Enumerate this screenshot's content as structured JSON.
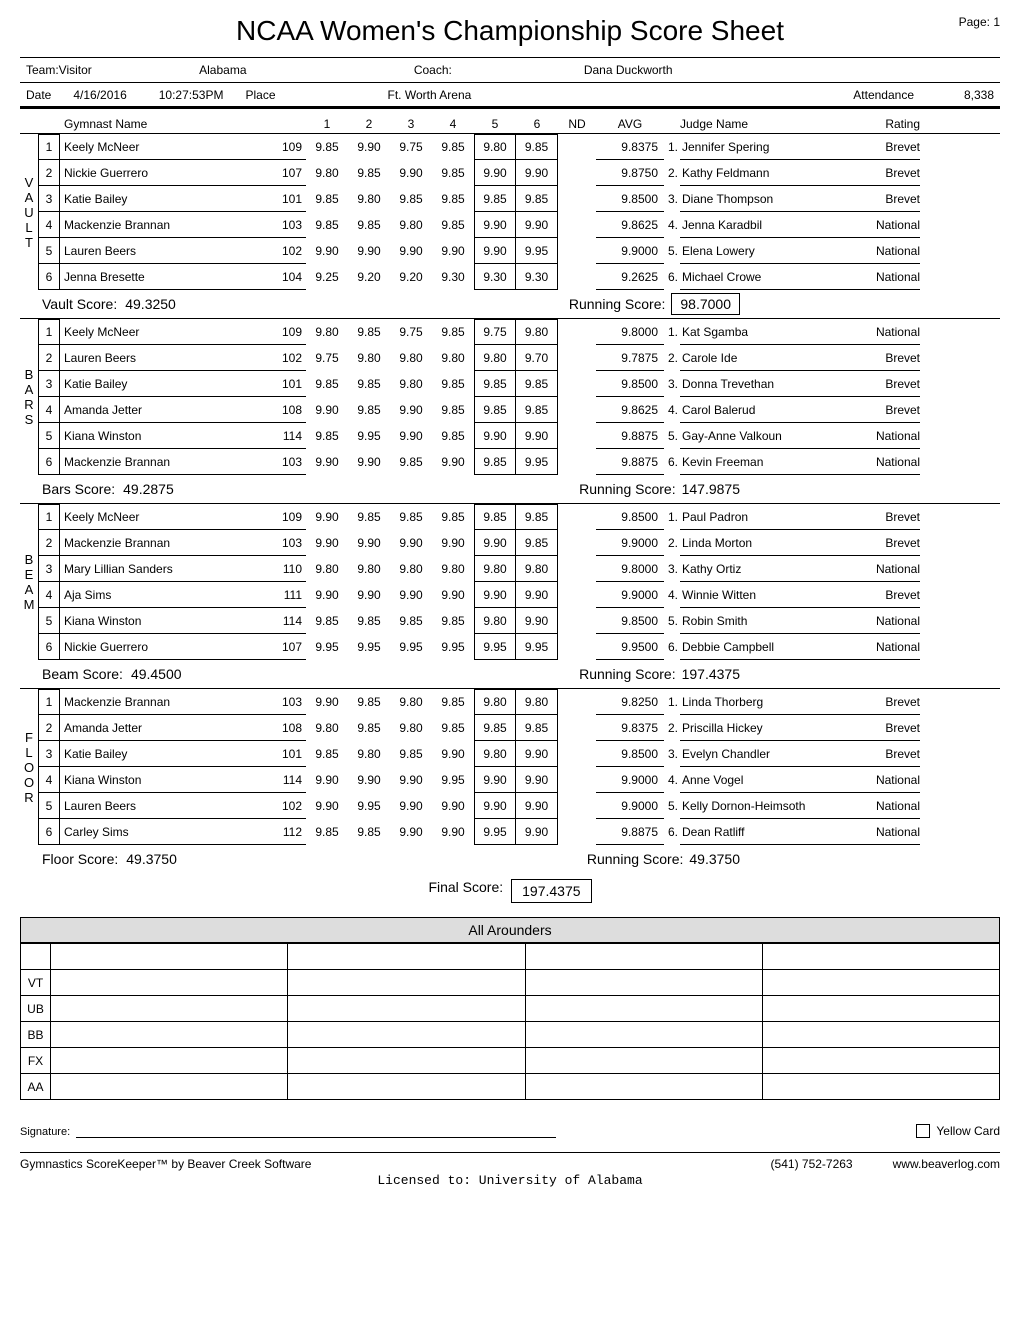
{
  "page_label": "Page:  1",
  "title": "NCAA Women's Championship Score Sheet",
  "team_label": "Team:Visitor",
  "team_name": "Alabama",
  "coach_label": "Coach:",
  "coach_name": "Dana Duckworth",
  "date_label": "Date",
  "date": "4/16/2016",
  "time": "10:27:53PM",
  "place_label": "Place",
  "venue": "Ft. Worth Arena",
  "attendance_label": "Attendance",
  "attendance": "8,338",
  "col_headers": {
    "gymnast": "Gymnast Name",
    "s1": "1",
    "s2": "2",
    "s3": "3",
    "s4": "4",
    "s5": "5",
    "s6": "6",
    "nd": "ND",
    "avg": "AVG",
    "judge": "Judge Name",
    "rating": "Rating"
  },
  "events": [
    {
      "code": "VAULT",
      "letters": [
        "V",
        "A",
        "U",
        "L",
        "T"
      ],
      "rows": [
        {
          "n": "1",
          "name": "Keely McNeer",
          "bib": "109",
          "s": [
            "9.85",
            "9.90",
            "9.75",
            "9.85",
            "9.80",
            "9.85"
          ],
          "avg": "9.8375",
          "jn": "1.",
          "jname": "Jennifer Spering",
          "rating": "Brevet"
        },
        {
          "n": "2",
          "name": "Nickie Guerrero",
          "bib": "107",
          "s": [
            "9.80",
            "9.85",
            "9.90",
            "9.85",
            "9.90",
            "9.90"
          ],
          "avg": "9.8750",
          "jn": "2.",
          "jname": "Kathy Feldmann",
          "rating": "Brevet"
        },
        {
          "n": "3",
          "name": "Katie Bailey",
          "bib": "101",
          "s": [
            "9.85",
            "9.80",
            "9.85",
            "9.85",
            "9.85",
            "9.85"
          ],
          "avg": "9.8500",
          "jn": "3.",
          "jname": "Diane Thompson",
          "rating": "Brevet"
        },
        {
          "n": "4",
          "name": "Mackenzie Brannan",
          "bib": "103",
          "s": [
            "9.85",
            "9.85",
            "9.80",
            "9.85",
            "9.90",
            "9.90"
          ],
          "avg": "9.8625",
          "jn": "4.",
          "jname": "Jenna Karadbil",
          "rating": "National"
        },
        {
          "n": "5",
          "name": "Lauren Beers",
          "bib": "102",
          "s": [
            "9.90",
            "9.90",
            "9.90",
            "9.90",
            "9.90",
            "9.95"
          ],
          "avg": "9.9000",
          "jn": "5.",
          "jname": "Elena Lowery",
          "rating": "National"
        },
        {
          "n": "6",
          "name": "Jenna Bresette",
          "bib": "104",
          "s": [
            "9.25",
            "9.20",
            "9.20",
            "9.30",
            "9.30",
            "9.30"
          ],
          "avg": "9.2625",
          "jn": "6.",
          "jname": "Michael Crowe",
          "rating": "National"
        }
      ],
      "score_label": "Vault Score:",
      "score": "49.3250",
      "running_label": "Running Score:",
      "running": "98.7000"
    },
    {
      "code": "BARS",
      "letters": [
        "B",
        "A",
        "R",
        "S"
      ],
      "rows": [
        {
          "n": "1",
          "name": "Keely McNeer",
          "bib": "109",
          "s": [
            "9.80",
            "9.85",
            "9.75",
            "9.85",
            "9.75",
            "9.80"
          ],
          "avg": "9.8000",
          "jn": "1.",
          "jname": "Kat Sgamba",
          "rating": "National"
        },
        {
          "n": "2",
          "name": "Lauren Beers",
          "bib": "102",
          "s": [
            "9.75",
            "9.80",
            "9.80",
            "9.80",
            "9.80",
            "9.70"
          ],
          "avg": "9.7875",
          "jn": "2.",
          "jname": "Carole Ide",
          "rating": "Brevet"
        },
        {
          "n": "3",
          "name": "Katie Bailey",
          "bib": "101",
          "s": [
            "9.85",
            "9.85",
            "9.80",
            "9.85",
            "9.85",
            "9.85"
          ],
          "avg": "9.8500",
          "jn": "3.",
          "jname": "Donna Trevethan",
          "rating": "Brevet"
        },
        {
          "n": "4",
          "name": "Amanda Jetter",
          "bib": "108",
          "s": [
            "9.90",
            "9.85",
            "9.90",
            "9.85",
            "9.85",
            "9.85"
          ],
          "avg": "9.8625",
          "jn": "4.",
          "jname": "Carol Balerud",
          "rating": "Brevet"
        },
        {
          "n": "5",
          "name": "Kiana Winston",
          "bib": "114",
          "s": [
            "9.85",
            "9.95",
            "9.90",
            "9.85",
            "9.90",
            "9.90"
          ],
          "avg": "9.8875",
          "jn": "5.",
          "jname": "Gay-Anne Valkoun",
          "rating": "National"
        },
        {
          "n": "6",
          "name": "Mackenzie Brannan",
          "bib": "103",
          "s": [
            "9.90",
            "9.90",
            "9.85",
            "9.90",
            "9.85",
            "9.95"
          ],
          "avg": "9.8875",
          "jn": "6.",
          "jname": "Kevin Freeman",
          "rating": "National"
        }
      ],
      "score_label": "Bars Score:",
      "score": "49.2875",
      "running_label": "Running Score:",
      "running": "147.9875"
    },
    {
      "code": "BEAM",
      "letters": [
        "B",
        "E",
        "A",
        "M"
      ],
      "rows": [
        {
          "n": "1",
          "name": "Keely McNeer",
          "bib": "109",
          "s": [
            "9.90",
            "9.85",
            "9.85",
            "9.85",
            "9.85",
            "9.85"
          ],
          "avg": "9.8500",
          "jn": "1.",
          "jname": "Paul Padron",
          "rating": "Brevet"
        },
        {
          "n": "2",
          "name": "Mackenzie Brannan",
          "bib": "103",
          "s": [
            "9.90",
            "9.90",
            "9.90",
            "9.90",
            "9.90",
            "9.85"
          ],
          "avg": "9.9000",
          "jn": "2.",
          "jname": "Linda Morton",
          "rating": "Brevet"
        },
        {
          "n": "3",
          "name": "Mary Lillian Sanders",
          "bib": "110",
          "s": [
            "9.80",
            "9.80",
            "9.80",
            "9.80",
            "9.80",
            "9.80"
          ],
          "avg": "9.8000",
          "jn": "3.",
          "jname": "Kathy Ortiz",
          "rating": "National"
        },
        {
          "n": "4",
          "name": "Aja Sims",
          "bib": "111",
          "s": [
            "9.90",
            "9.90",
            "9.90",
            "9.90",
            "9.90",
            "9.90"
          ],
          "avg": "9.9000",
          "jn": "4.",
          "jname": "Winnie Witten",
          "rating": "Brevet"
        },
        {
          "n": "5",
          "name": "Kiana Winston",
          "bib": "114",
          "s": [
            "9.85",
            "9.85",
            "9.85",
            "9.85",
            "9.80",
            "9.90"
          ],
          "avg": "9.8500",
          "jn": "5.",
          "jname": "Robin Smith",
          "rating": "National"
        },
        {
          "n": "6",
          "name": "Nickie Guerrero",
          "bib": "107",
          "s": [
            "9.95",
            "9.95",
            "9.95",
            "9.95",
            "9.95",
            "9.95"
          ],
          "avg": "9.9500",
          "jn": "6.",
          "jname": "Debbie Campbell",
          "rating": "National"
        }
      ],
      "score_label": "Beam Score:",
      "score": "49.4500",
      "running_label": "Running Score:",
      "running": "197.4375"
    },
    {
      "code": "FLOOR",
      "letters": [
        "F",
        "L",
        "O",
        "O",
        "R"
      ],
      "rows": [
        {
          "n": "1",
          "name": "Mackenzie Brannan",
          "bib": "103",
          "s": [
            "9.90",
            "9.85",
            "9.80",
            "9.85",
            "9.80",
            "9.80"
          ],
          "avg": "9.8250",
          "jn": "1.",
          "jname": "Linda Thorberg",
          "rating": "Brevet"
        },
        {
          "n": "2",
          "name": "Amanda Jetter",
          "bib": "108",
          "s": [
            "9.80",
            "9.85",
            "9.80",
            "9.85",
            "9.85",
            "9.85"
          ],
          "avg": "9.8375",
          "jn": "2.",
          "jname": "Priscilla Hickey",
          "rating": "Brevet"
        },
        {
          "n": "3",
          "name": "Katie Bailey",
          "bib": "101",
          "s": [
            "9.85",
            "9.80",
            "9.85",
            "9.90",
            "9.80",
            "9.90"
          ],
          "avg": "9.8500",
          "jn": "3.",
          "jname": "Evelyn Chandler",
          "rating": "Brevet"
        },
        {
          "n": "4",
          "name": "Kiana Winston",
          "bib": "114",
          "s": [
            "9.90",
            "9.90",
            "9.90",
            "9.95",
            "9.90",
            "9.90"
          ],
          "avg": "9.9000",
          "jn": "4.",
          "jname": "Anne Vogel",
          "rating": "National"
        },
        {
          "n": "5",
          "name": "Lauren Beers",
          "bib": "102",
          "s": [
            "9.90",
            "9.95",
            "9.90",
            "9.90",
            "9.90",
            "9.90"
          ],
          "avg": "9.9000",
          "jn": "5.",
          "jname": "Kelly Dornon-Heimsoth",
          "rating": "National"
        },
        {
          "n": "6",
          "name": "Carley Sims",
          "bib": "112",
          "s": [
            "9.85",
            "9.85",
            "9.90",
            "9.90",
            "9.95",
            "9.90"
          ],
          "avg": "9.8875",
          "jn": "6.",
          "jname": "Dean Ratliff",
          "rating": "National"
        }
      ],
      "score_label": "Floor Score:",
      "score": "49.3750",
      "running_label": "Running Score:",
      "running": "49.3750"
    }
  ],
  "final_label": "Final Score:",
  "final_score": "197.4375",
  "all_arounders_title": "All Arounders",
  "aa_rows": [
    "",
    "VT",
    "UB",
    "BB",
    "FX",
    "AA"
  ],
  "signature_label": "Signature:",
  "yellow_card_label": "Yellow Card",
  "footer_left": "Gymnastics ScoreKeeper™ by Beaver Creek Software",
  "footer_phone": "(541) 752-7263",
  "footer_site": "www.beaverlog.com",
  "footer_license": "Licensed to:  University of Alabama"
}
